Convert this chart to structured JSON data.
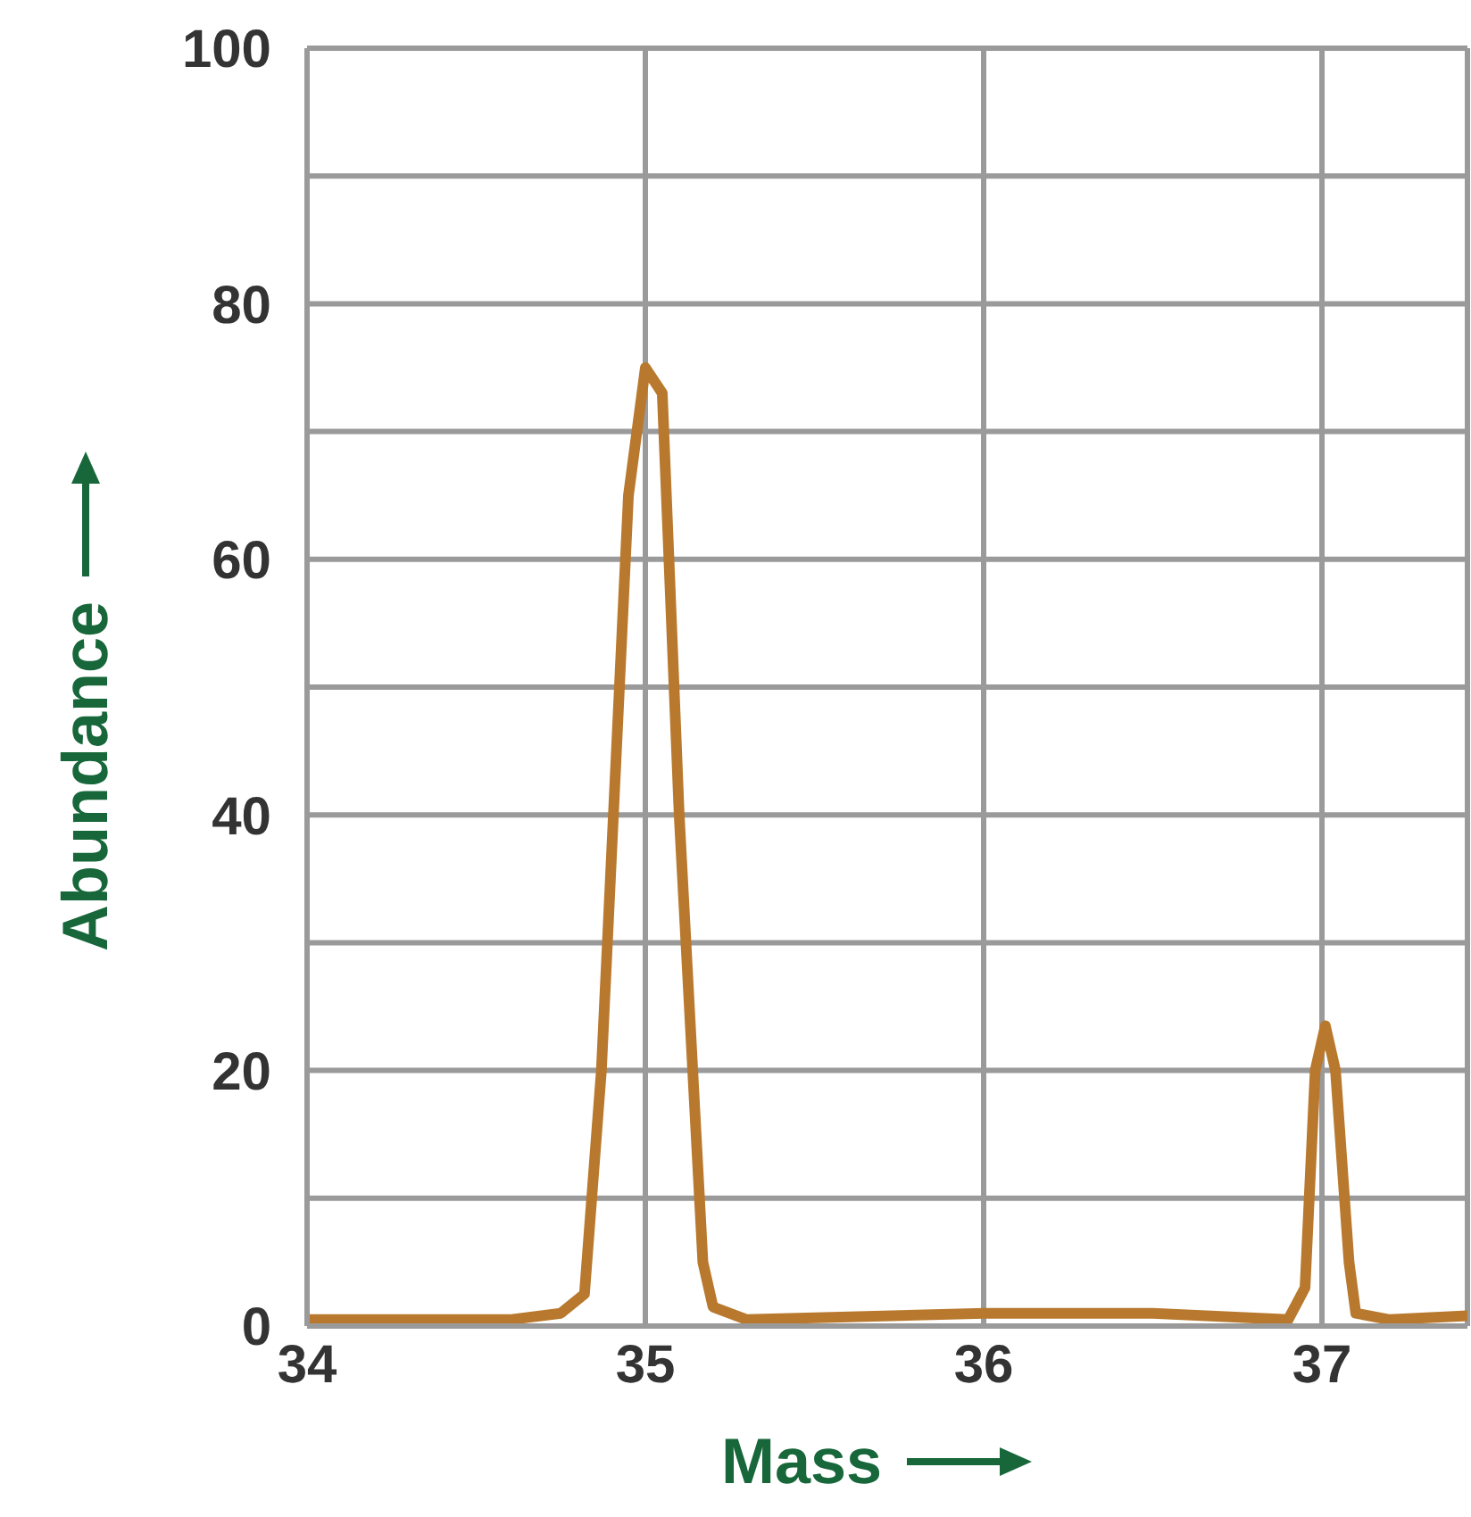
{
  "chart_data": {
    "type": "line",
    "xlabel": "Mass",
    "ylabel": "Abundance",
    "x": [
      34,
      34.6,
      34.75,
      34.82,
      34.87,
      34.95,
      35.0,
      35.05,
      35.1,
      35.17,
      35.2,
      35.3,
      36,
      36.5,
      36.9,
      36.95,
      36.98,
      37.01,
      37.04,
      37.08,
      37.1,
      37.2,
      37.43
    ],
    "series": [
      {
        "color": "#b8792e",
        "values": [
          0.5,
          0.5,
          1,
          2.5,
          20,
          65,
          75,
          73,
          40,
          5,
          1.5,
          0.5,
          1,
          1,
          0.5,
          3,
          20,
          23.5,
          20,
          5,
          1,
          0.5,
          0.8
        ]
      }
    ],
    "xlim": [
      34,
      37.43
    ],
    "xticks": [
      34,
      35,
      36,
      37
    ],
    "ylim": [
      0,
      100
    ],
    "yticks": [
      0,
      {
        "value": 10,
        "label": null
      },
      20,
      {
        "value": 30,
        "label": null
      },
      40,
      {
        "value": 50,
        "label": null
      },
      60,
      {
        "value": 70,
        "label": null
      },
      80,
      {
        "value": 90,
        "label": null
      },
      100
    ],
    "grid": true,
    "marker": "none",
    "line_style": "solid"
  }
}
